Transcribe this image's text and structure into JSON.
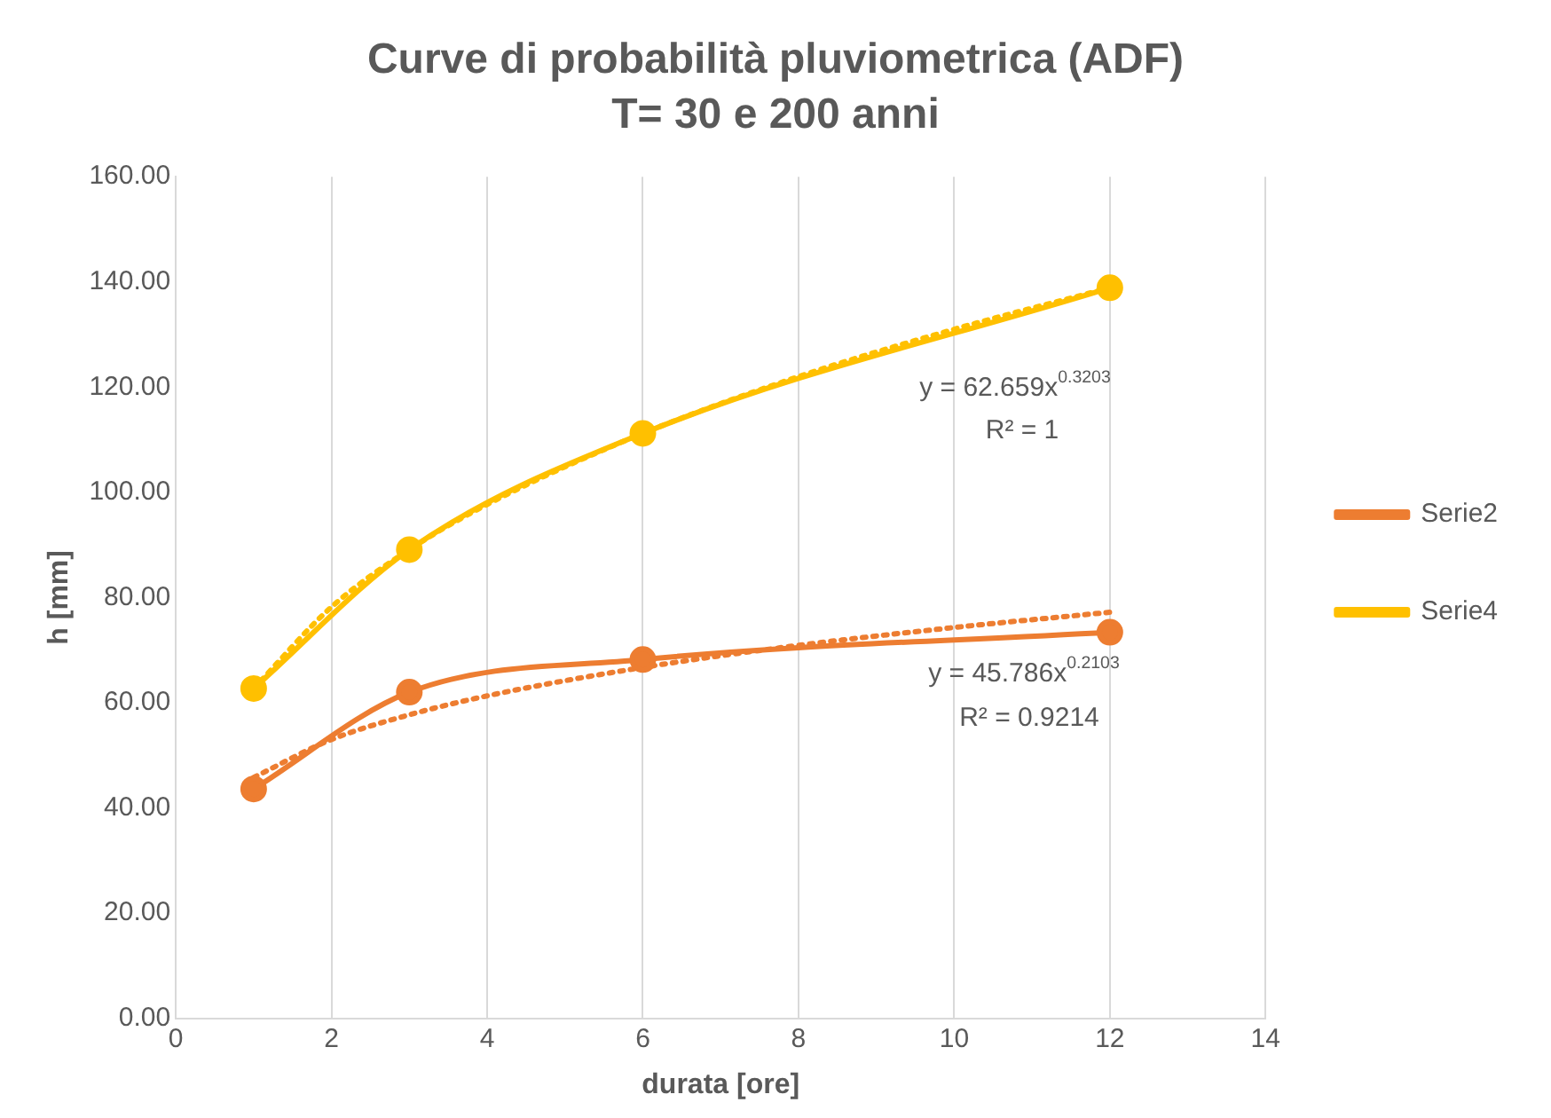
{
  "chart_data": {
    "type": "line",
    "title": "Curve di probabilità pluviometrica (ADF)",
    "subtitle": "T= 30 e 200 anni",
    "xlabel": "durata [ore]",
    "ylabel": "h [mm]",
    "xlim": [
      0,
      14
    ],
    "xticks": [
      0,
      2,
      4,
      6,
      8,
      10,
      12,
      14
    ],
    "ylim": [
      0,
      160
    ],
    "yticks": [
      {
        "value": 0,
        "label": "0.00"
      },
      {
        "value": 20,
        "label": "20.00"
      },
      {
        "value": 40,
        "label": "40.00"
      },
      {
        "value": 60,
        "label": "60.00"
      },
      {
        "value": 80,
        "label": "80.00"
      },
      {
        "value": 100,
        "label": "100.00"
      },
      {
        "value": 120,
        "label": "120.00"
      },
      {
        "value": 140,
        "label": "140.00"
      },
      {
        "value": 160,
        "label": "160.00"
      }
    ],
    "grid": "x",
    "legend": "right",
    "series": [
      {
        "name": "Serie2",
        "color": "#ed7d31",
        "x": [
          1,
          3,
          6,
          12
        ],
        "values": [
          43.6,
          62.0,
          68.2,
          73.4
        ],
        "marker": "circle"
      },
      {
        "name": "Serie4",
        "color": "#ffc000",
        "x": [
          1,
          3,
          6,
          12
        ],
        "values": [
          62.7,
          89.1,
          111.2,
          138.9
        ],
        "marker": "circle"
      },
      {
        "color": "#ed7d31",
        "x": [
          1,
          2,
          3,
          4,
          6,
          8,
          10,
          12
        ],
        "values": [
          45.8,
          53.0,
          57.7,
          61.3,
          66.7,
          70.9,
          74.3,
          77.2
        ],
        "marker": "none",
        "line_style": "dotted"
      },
      {
        "color": "#ffc000",
        "x": [
          1,
          2,
          3,
          4,
          6,
          8,
          10,
          12
        ],
        "values": [
          62.7,
          78.2,
          89.1,
          97.7,
          111.2,
          122.0,
          131.0,
          138.9
        ],
        "marker": "none",
        "line_style": "dotted"
      }
    ],
    "annotations": [
      "y = 62.659x$^{0.3203}$",
      "R² = 1",
      "y = 45.786x$^{0.2103}$",
      "R² = 0.9214"
    ]
  }
}
